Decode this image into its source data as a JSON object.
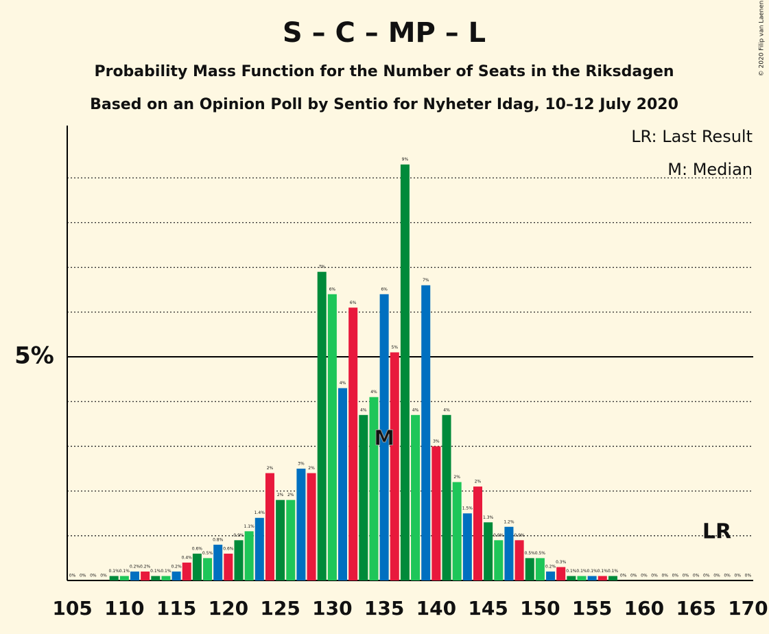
{
  "chart_data": {
    "type": "bar",
    "title": "S – C – MP – L",
    "subtitles": [
      "Probability Mass Function for the Number of Seats in the Riksdagen",
      "Based on an Opinion Poll by Sentio for Nyheter Idag, 10–12 July 2020"
    ],
    "legend": [
      "LR: Last Result",
      "M: Median"
    ],
    "copyright": "© 2020 Filip van Laenen",
    "x": [
      105,
      106,
      107,
      108,
      109,
      110,
      111,
      112,
      113,
      114,
      115,
      116,
      117,
      118,
      119,
      120,
      121,
      122,
      123,
      124,
      125,
      126,
      127,
      128,
      129,
      130,
      131,
      132,
      133,
      134,
      135,
      136,
      137,
      138,
      139,
      140,
      141,
      142,
      143,
      144,
      145,
      146,
      147,
      148,
      149,
      150,
      151,
      152,
      153,
      154,
      155,
      156,
      157,
      158,
      159,
      160,
      161,
      162,
      163,
      164,
      165,
      166,
      167,
      168,
      169,
      170
    ],
    "values": [
      0,
      0,
      0,
      0,
      0.1,
      0.1,
      0.2,
      0.2,
      0.1,
      0.1,
      0.2,
      0.4,
      0.6,
      0.5,
      0.8,
      0.6,
      0.9,
      1.1,
      1.4,
      2.4,
      1.8,
      1.8,
      2.5,
      2.4,
      6.9,
      6.4,
      4.3,
      6.1,
      3.7,
      4.1,
      6.4,
      5.1,
      9.3,
      3.7,
      6.6,
      3.0,
      3.7,
      2.2,
      1.5,
      2.1,
      1.3,
      0.9,
      1.2,
      0.9,
      0.5,
      0.5,
      0.2,
      0.3,
      0.1,
      0.1,
      0.1,
      0.1,
      0.1,
      0,
      0,
      0,
      0,
      0,
      0,
      0,
      0,
      0,
      0,
      0,
      0,
      0
    ],
    "value_labels": [
      "0%",
      "0%",
      "0%",
      "0%",
      "0.1%",
      "0.1%",
      "0.2%",
      "0.2%",
      "0.1%",
      "0.1%",
      "0.2%",
      "0.4%",
      "0.6%",
      "0.5%",
      "0.8%",
      "0.6%",
      "0.9%",
      "1.1%",
      "1.4%",
      "2%",
      "2%",
      "2%",
      "3%",
      "2%",
      "7%",
      "6%",
      "4%",
      "6%",
      "4%",
      "4%",
      "6%",
      "5%",
      "9%",
      "4%",
      "7%",
      "3%",
      "4%",
      "2%",
      "1.5%",
      "2%",
      "1.3%",
      "0.9%",
      "1.2%",
      "0.9%",
      "0.5%",
      "0.5%",
      "0.2%",
      "0.3%",
      "0.1%",
      "0.1%",
      "0.1%",
      "0.1%",
      "0.1%",
      "0%",
      "0%",
      "0%",
      "0%",
      "0%",
      "0%",
      "0%",
      "0%",
      "0%",
      "0%",
      "0%",
      "0%",
      "0%"
    ],
    "color_cycle": [
      "#008a3a",
      "#1ec659",
      "#0070c0",
      "#e8193c"
    ],
    "xlim": [
      104.5,
      170.5
    ],
    "xticks": [
      105,
      110,
      115,
      120,
      125,
      130,
      135,
      140,
      145,
      150,
      155,
      160,
      165,
      170
    ],
    "ylim": [
      0,
      10.17
    ],
    "yticks": [
      {
        "value": 5,
        "label": "5%"
      }
    ],
    "minor_gridlines": [
      1,
      2,
      3,
      4,
      6,
      7,
      8,
      9
    ],
    "median": 135,
    "median_label": "M",
    "last_result": 167,
    "last_result_label": "LR"
  }
}
